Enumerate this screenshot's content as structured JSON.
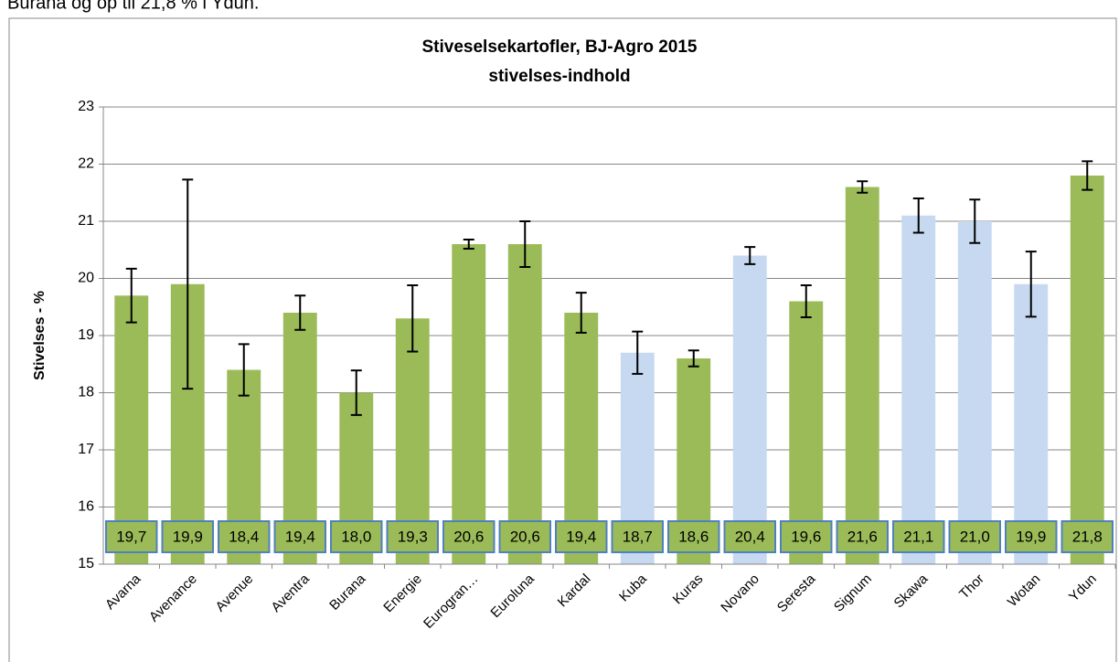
{
  "caption": "Burana og op til 21,8 % i Ydun.",
  "chart_data": {
    "type": "bar",
    "title": [
      "Stiveselsekartofler, BJ-Agro 2015",
      "stivelses-indhold"
    ],
    "y_label": "Stivelses - %",
    "categories": [
      "Avarna",
      "Avenance",
      "Avenue",
      "Aventra",
      "Burana",
      "Energie",
      "Eurogran…",
      "Euroluna",
      "Kardal",
      "Kuba",
      "Kuras",
      "Novano",
      "Seresta",
      "Signum",
      "Skawa",
      "Thor",
      "Wotan",
      "Ydun"
    ],
    "values": [
      19.7,
      19.9,
      18.4,
      19.4,
      18.0,
      19.3,
      20.6,
      20.6,
      19.4,
      18.7,
      18.6,
      20.4,
      19.6,
      21.6,
      21.1,
      21.0,
      19.9,
      21.8
    ],
    "value_labels": [
      "19,7",
      "19,9",
      "18,4",
      "19,4",
      "18,0",
      "19,3",
      "20,6",
      "20,6",
      "19,4",
      "18,7",
      "18,6",
      "20,4",
      "19,6",
      "21,6",
      "21,1",
      "21,0",
      "19,9",
      "21,8"
    ],
    "errors": [
      0.47,
      1.83,
      0.45,
      0.3,
      0.39,
      0.58,
      0.08,
      0.4,
      0.35,
      0.37,
      0.14,
      0.15,
      0.28,
      0.1,
      0.3,
      0.38,
      0.57,
      0.25
    ],
    "colors": [
      "#9bbb59",
      "#9bbb59",
      "#9bbb59",
      "#9bbb59",
      "#9bbb59",
      "#9bbb59",
      "#9bbb59",
      "#9bbb59",
      "#9bbb59",
      "#c6d9f1",
      "#9bbb59",
      "#c6d9f1",
      "#9bbb59",
      "#9bbb59",
      "#c6d9f1",
      "#c6d9f1",
      "#c6d9f1",
      "#9bbb59"
    ],
    "ylim": [
      15,
      23
    ],
    "yticks": [
      15,
      16,
      17,
      18,
      19,
      20,
      21,
      22,
      23
    ],
    "grid": true
  }
}
